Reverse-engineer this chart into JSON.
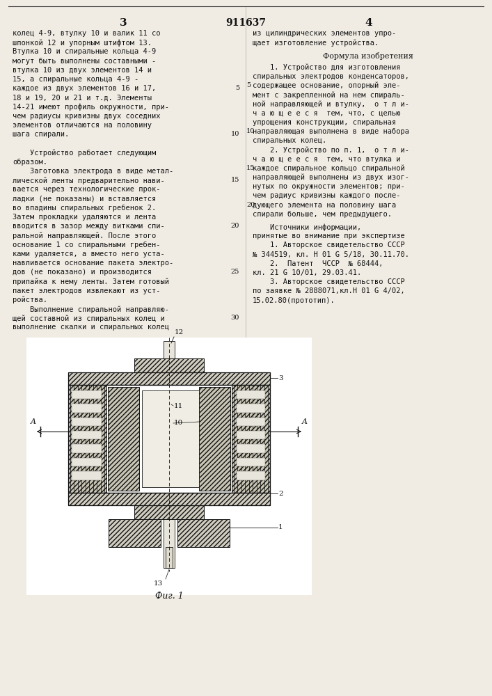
{
  "page_number_left": "3",
  "patent_number": "911637",
  "page_number_right": "4",
  "bg_color": "#f0ece4",
  "draw_bg": "#ffffff",
  "text_color": "#111111",
  "left_col_lines": [
    "колец 4-9, втулку 10 и валик 11 со",
    "шпонкой 12 и упорным штифтом 13.",
    "Втулка 10 и спиральные кольца 4-9",
    "могут быть выполнены составными -",
    "втулка 10 из двух элементов 14 и",
    "15, а спиральные кольца 4-9 -",
    "каждое из двух элементов 16 и 17,",
    "18 и 19, 20 и 21 и т.д. Элементы",
    "14-21 имеют профиль окружности, при-",
    "чем радиусы кривизны двух соседних",
    "элементов отличаются на половину",
    "шага спирали.",
    "",
    "    Устройство работает следующим",
    "образом.",
    "    Заготовка электрода в виде метал-",
    "лической ленты предварительно нави-",
    "вается через технологические прок-",
    "ладки (не показаны) и вставляется",
    "во впадины спиральных гребенок 2.",
    "Затем прокладки удаляются и лента",
    "вводится в зазор между витками спи-",
    "ральной направляющей. После этого",
    "основание 1 со спиральными гребен-",
    "ками удаляется, а вместо него уста-",
    "навливается основание пакета электро-",
    "дов (не показано) и производится",
    "припайка к нему ленты. Затем готовый",
    "пакет электродов извлекают из уст-",
    "ройства.",
    "    Выполнение спиральной направляю-",
    "щей составной из спиральных колец и",
    "выполнение скалки и спиральных колец"
  ],
  "right_col_top": [
    "из цилиндрических элементов упро-",
    "щает изготовление устройства."
  ],
  "formula_title": "Формула изобретения",
  "right_col_body": [
    "    1. Устройство для изготовления",
    "спиральных электродов конденсаторов,",
    "содержащее основание, опорный эле-",
    "мент с закрепленной на нем спираль-",
    "ной направляющей и втулку,  о т л и-",
    "ч а ю щ е е с я  тем, что, с целью",
    "упрощения конструкции, спиральная",
    "направляющая выполнена в виде набора",
    "спиральных колец.",
    "    2. Устройство по п. 1,  о т л и-",
    "ч а ю щ е е с я  тем, что втулка и",
    "каждое спиральное кольцо спиральной",
    "направляющей выполнены из двух изог-",
    "нутых по окружности элементов; при-",
    "чем радиус кривизны каждого после-",
    "дующего элемента на половину шага",
    "спирали больше, чем предыдущего."
  ],
  "sources": [
    "    Источники информации,",
    "принятые во внимание при экспертизе",
    "    1. Авторское свидетельство СССР",
    "№ 344519, кл. Н 01 G 5/18, 30.11.70.",
    "    2.  Патент  ЧССР  № 68444,",
    "кл. 21 G 10/01, 29.03.41.",
    "    3. Авторское свидетельство СССР",
    "по заявке № 2888071,кл.Н 01 G 4/02,",
    "15.02.80(прототип)."
  ],
  "fig_caption": "Фиг. 1",
  "left_line_nums": {
    "6": "5",
    "11": "10",
    "16": "15",
    "21": "20",
    "26": "25",
    "31": "30"
  },
  "right_line_nums": {
    "2": "5",
    "7": "10",
    "11": "15",
    "15": "20"
  }
}
